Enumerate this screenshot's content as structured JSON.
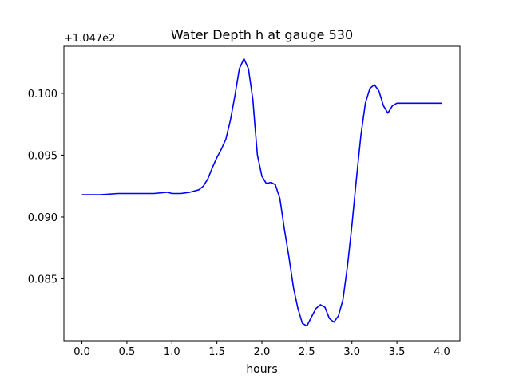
{
  "chart_data": {
    "type": "line",
    "title": "Water Depth h at gauge 530",
    "xlabel": "hours",
    "ylabel": "",
    "offset_label": "+1.047e2",
    "xlim": [
      -0.2,
      4.2
    ],
    "ylim": [
      0.08,
      0.1038
    ],
    "xticks": [
      0.0,
      0.5,
      1.0,
      1.5,
      2.0,
      2.5,
      3.0,
      3.5,
      4.0
    ],
    "xtick_labels": [
      "0.0",
      "0.5",
      "1.0",
      "1.5",
      "2.0",
      "2.5",
      "3.0",
      "3.5",
      "4.0"
    ],
    "yticks": [
      0.085,
      0.09,
      0.095,
      0.1
    ],
    "ytick_labels": [
      "0.085",
      "0.090",
      "0.095",
      "0.100"
    ],
    "grid": false,
    "legend": "none",
    "series": [
      {
        "name": "",
        "color": "#0000ff",
        "x": [
          0.0,
          0.2,
          0.4,
          0.6,
          0.8,
          0.95,
          1.0,
          1.05,
          1.1,
          1.2,
          1.3,
          1.35,
          1.4,
          1.45,
          1.5,
          1.55,
          1.6,
          1.65,
          1.7,
          1.75,
          1.8,
          1.85,
          1.9,
          1.92,
          1.95,
          2.0,
          2.05,
          2.1,
          2.15,
          2.2,
          2.25,
          2.3,
          2.35,
          2.4,
          2.45,
          2.5,
          2.55,
          2.6,
          2.65,
          2.7,
          2.75,
          2.8,
          2.85,
          2.9,
          2.95,
          3.0,
          3.05,
          3.1,
          3.15,
          3.2,
          3.25,
          3.3,
          3.35,
          3.4,
          3.45,
          3.5,
          3.55,
          3.6,
          3.65,
          3.7,
          3.75,
          3.8,
          3.85,
          3.9,
          3.95,
          4.0
        ],
        "y": [
          0.0918,
          0.0918,
          0.0919,
          0.0919,
          0.0919,
          0.092,
          0.0919,
          0.0919,
          0.0919,
          0.092,
          0.0922,
          0.0925,
          0.0931,
          0.094,
          0.0948,
          0.0955,
          0.0963,
          0.0978,
          0.0998,
          0.102,
          0.1028,
          0.102,
          0.0995,
          0.0976,
          0.095,
          0.0933,
          0.0927,
          0.0928,
          0.0926,
          0.0915,
          0.089,
          0.0868,
          0.0843,
          0.0826,
          0.0814,
          0.0812,
          0.0819,
          0.0826,
          0.0829,
          0.0827,
          0.0818,
          0.0815,
          0.082,
          0.0833,
          0.086,
          0.0893,
          0.0931,
          0.0966,
          0.0992,
          0.1004,
          0.1007,
          0.1002,
          0.099,
          0.0984,
          0.099,
          0.0992,
          0.0992,
          0.0992,
          0.0992,
          0.0992,
          0.0992,
          0.0992,
          0.0992,
          0.0992,
          0.0992,
          0.0992
        ]
      }
    ]
  }
}
